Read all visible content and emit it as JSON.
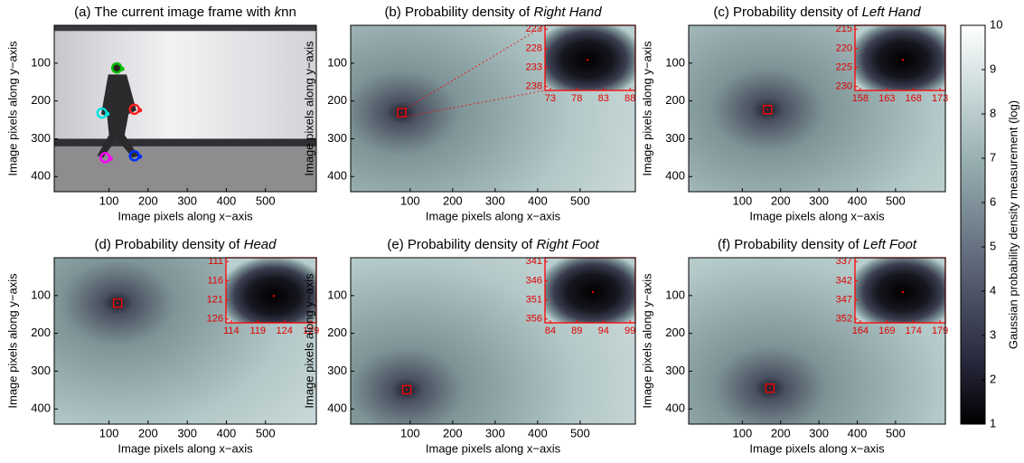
{
  "chart_data": [
    {
      "type": "image",
      "title_prefix": "(a) The current image frame with ",
      "title_italic": "k",
      "title_suffix": "nn",
      "x_label": "Image pixels along x−axis",
      "y_label": "Image pixels along y−axis",
      "xlim": [
        -40,
        630
      ],
      "ylim": [
        0,
        440
      ],
      "y_reversed": true,
      "xticks": [
        100,
        200,
        300,
        400,
        500
      ],
      "yticks": [
        100,
        200,
        300,
        400
      ],
      "markers_x": [
        120,
        82,
        165,
        90,
        165
      ],
      "markers_y": [
        113,
        232,
        222,
        350,
        345
      ],
      "marker_colors": [
        "#00c000",
        "#00e0e0",
        "#ff2020",
        "#ff00ff",
        "#0030ff"
      ]
    },
    {
      "type": "heatmap",
      "title_prefix": "(b) Probability density of ",
      "title_italic": "Right Hand",
      "x_label": "Image pixels along x−axis",
      "y_label": "Image pixels along y−axis",
      "xlim": [
        -40,
        630
      ],
      "ylim": [
        0,
        440
      ],
      "y_reversed": true,
      "xticks": [
        100,
        200,
        300,
        400,
        500
      ],
      "yticks": [
        100,
        200,
        300,
        400
      ],
      "peak_x": 80,
      "peak_y": 231,
      "inset_xlim": [
        72,
        89
      ],
      "inset_ylim": [
        222,
        239
      ],
      "inset_xticks": [
        73,
        78,
        83,
        88
      ],
      "inset_yticks": [
        223,
        228,
        233,
        238
      ],
      "inset_color": "#ff0000",
      "zoom_lines": true
    },
    {
      "type": "heatmap",
      "title_prefix": "(c) Probability density of ",
      "title_italic": "Left Hand",
      "x_label": "Image pixels along x−axis",
      "y_label": "Image pixels along y−axis",
      "xlim": [
        -40,
        630
      ],
      "ylim": [
        0,
        440
      ],
      "y_reversed": true,
      "xticks": [
        100,
        200,
        300,
        400,
        500
      ],
      "yticks": [
        100,
        200,
        300,
        400
      ],
      "peak_x": 166,
      "peak_y": 223,
      "inset_xlim": [
        157,
        174
      ],
      "inset_ylim": [
        214,
        231
      ],
      "inset_xticks": [
        158,
        163,
        168,
        173
      ],
      "inset_yticks": [
        215,
        220,
        225,
        230
      ],
      "inset_color": "#ff0000",
      "zoom_lines": false
    },
    {
      "type": "heatmap",
      "title_prefix": "(d) Probability density of ",
      "title_italic": "Head",
      "x_label": "Image pixels along x−axis",
      "y_label": "Image pixels along y−axis",
      "xlim": [
        -40,
        630
      ],
      "ylim": [
        0,
        440
      ],
      "y_reversed": true,
      "xticks": [
        100,
        200,
        300,
        400,
        500
      ],
      "yticks": [
        100,
        200,
        300,
        400
      ],
      "peak_x": 122,
      "peak_y": 120,
      "inset_xlim": [
        113,
        130
      ],
      "inset_ylim": [
        110,
        127
      ],
      "inset_xticks": [
        114,
        119,
        124,
        129
      ],
      "inset_yticks": [
        111,
        116,
        121,
        126
      ],
      "inset_color": "#ff0000",
      "zoom_lines": false
    },
    {
      "type": "heatmap",
      "title_prefix": "(e) Probability density of ",
      "title_italic": "Right Foot",
      "x_label": "Image pixels along x−axis",
      "y_label": "Image pixels along y−axis",
      "xlim": [
        -40,
        630
      ],
      "ylim": [
        0,
        440
      ],
      "y_reversed": true,
      "xticks": [
        100,
        200,
        300,
        400,
        500
      ],
      "yticks": [
        100,
        200,
        300,
        400
      ],
      "peak_x": 92,
      "peak_y": 349,
      "inset_xlim": [
        83,
        100
      ],
      "inset_ylim": [
        340,
        357
      ],
      "inset_xticks": [
        84,
        89,
        94,
        99
      ],
      "inset_yticks": [
        341,
        346,
        351,
        356
      ],
      "inset_color": "#ff0000",
      "zoom_lines": false
    },
    {
      "type": "heatmap",
      "title_prefix": "(f) Probability density of ",
      "title_italic": "Left Foot",
      "x_label": "Image pixels along x−axis",
      "y_label": "Image pixels along y−axis",
      "xlim": [
        -40,
        630
      ],
      "ylim": [
        0,
        440
      ],
      "y_reversed": true,
      "xticks": [
        100,
        200,
        300,
        400,
        500
      ],
      "yticks": [
        100,
        200,
        300,
        400
      ],
      "peak_x": 172,
      "peak_y": 345,
      "inset_xlim": [
        163,
        180
      ],
      "inset_ylim": [
        336,
        353
      ],
      "inset_xticks": [
        164,
        169,
        174,
        179
      ],
      "inset_yticks": [
        337,
        342,
        347,
        352
      ],
      "inset_color": "#ff0000",
      "zoom_lines": false
    },
    {
      "type": "colorbar",
      "label": "Gaussian probability density measurement (log)",
      "ylim": [
        1,
        10
      ],
      "yticks": [
        1,
        2,
        3,
        4,
        5,
        6,
        7,
        8,
        9,
        10
      ]
    }
  ]
}
